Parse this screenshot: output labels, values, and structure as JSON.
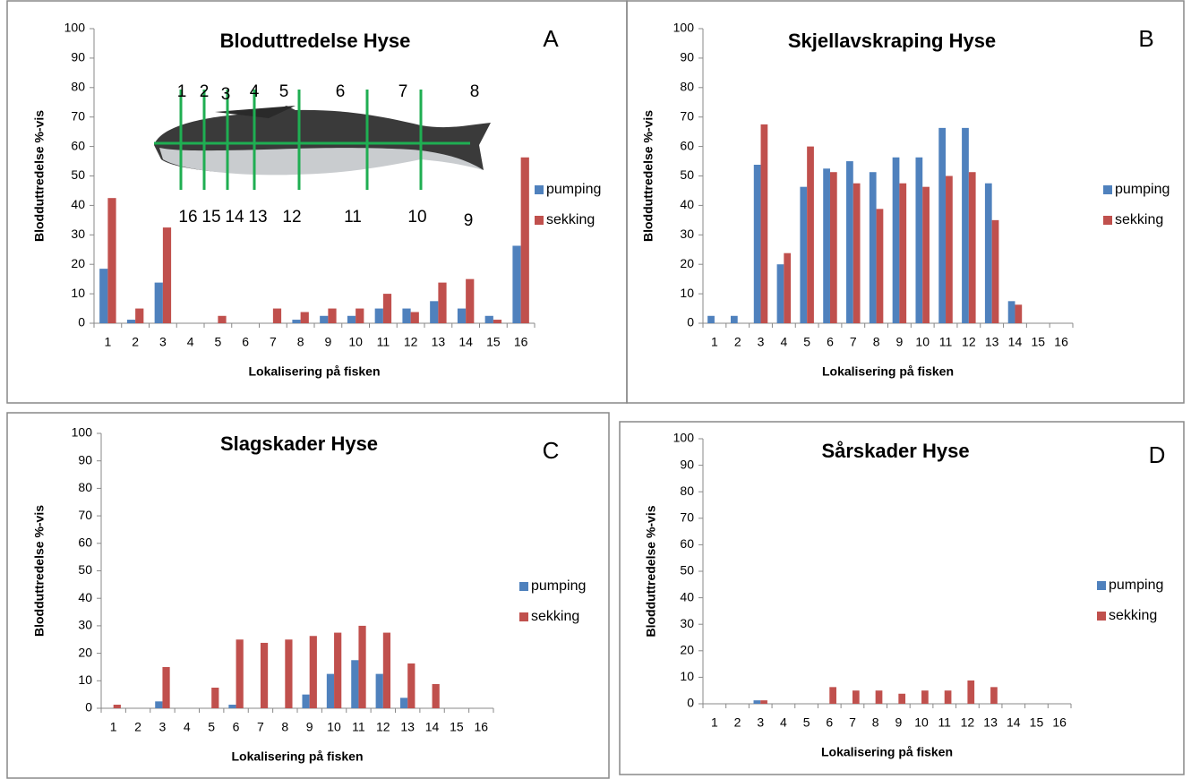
{
  "chart_data": [
    {
      "type": "bar",
      "panel": "A",
      "title": "Bloduttredelse Hyse",
      "xlabel": "Lokalisering på fisken",
      "ylabel": "Blodduttredelse %-vis",
      "categories": [
        "1",
        "2",
        "3",
        "4",
        "5",
        "6",
        "7",
        "8",
        "9",
        "10",
        "11",
        "12",
        "13",
        "14",
        "15",
        "16"
      ],
      "series": [
        {
          "name": "pumping",
          "color": "#4f81bd",
          "values": [
            18.5,
            1.2,
            13.8,
            0,
            0,
            0,
            0,
            1.2,
            2.5,
            2.5,
            5,
            5,
            7.5,
            5,
            2.5,
            26.3
          ]
        },
        {
          "name": "sekking",
          "color": "#c0504d",
          "values": [
            42.5,
            5,
            32.5,
            0,
            2.5,
            0,
            5,
            3.8,
            5,
            5,
            10,
            3.8,
            13.8,
            15,
            1.2,
            56.3
          ]
        }
      ],
      "ylim": [
        0,
        100
      ],
      "yticks": [
        0,
        10,
        20,
        30,
        40,
        50,
        60,
        70,
        80,
        90,
        100
      ],
      "grid": false,
      "legend": "right",
      "annotations": [
        "1",
        "2",
        "3",
        "4",
        "5",
        "6",
        "7",
        "8",
        "16",
        "15",
        "14",
        "13",
        "12",
        "11",
        "10",
        "9"
      ]
    },
    {
      "type": "bar",
      "panel": "B",
      "title": "Skjellavskraping Hyse",
      "xlabel": "Lokalisering på fisken",
      "ylabel": "Blodduttredelse %-vis",
      "categories": [
        "1",
        "2",
        "3",
        "4",
        "5",
        "6",
        "7",
        "8",
        "9",
        "10",
        "11",
        "12",
        "13",
        "14",
        "15",
        "16"
      ],
      "series": [
        {
          "name": "pumping",
          "color": "#4f81bd",
          "values": [
            2.5,
            2.5,
            53.8,
            20,
            46.3,
            52.5,
            55,
            51.3,
            56.3,
            56.3,
            66.3,
            66.3,
            47.5,
            7.5,
            0,
            0
          ]
        },
        {
          "name": "sekking",
          "color": "#c0504d",
          "values": [
            0,
            0,
            67.5,
            23.8,
            60,
            51.3,
            47.5,
            38.8,
            47.5,
            46.3,
            50,
            51.3,
            35,
            6.3,
            0,
            0
          ]
        }
      ],
      "ylim": [
        0,
        100
      ],
      "yticks": [
        0,
        10,
        20,
        30,
        40,
        50,
        60,
        70,
        80,
        90,
        100
      ],
      "grid": false,
      "legend": "right"
    },
    {
      "type": "bar",
      "panel": "C",
      "title": "Slagskader Hyse",
      "xlabel": "Lokalisering på fisken",
      "ylabel": "Blodduttredelse %-vis",
      "categories": [
        "1",
        "2",
        "3",
        "4",
        "5",
        "6",
        "7",
        "8",
        "9",
        "10",
        "11",
        "12",
        "13",
        "14",
        "15",
        "16"
      ],
      "series": [
        {
          "name": "pumping",
          "color": "#4f81bd",
          "values": [
            0,
            0,
            2.5,
            0,
            0,
            1.3,
            0,
            0,
            5,
            12.5,
            17.5,
            12.5,
            3.8,
            0,
            0,
            0
          ]
        },
        {
          "name": "sekking",
          "color": "#c0504d",
          "values": [
            1.3,
            0,
            15,
            0,
            7.5,
            25,
            23.8,
            25,
            26.3,
            27.5,
            30,
            27.5,
            16.3,
            8.8,
            0,
            0
          ]
        }
      ],
      "ylim": [
        0,
        100
      ],
      "yticks": [
        0,
        10,
        20,
        30,
        40,
        50,
        60,
        70,
        80,
        90,
        100
      ],
      "grid": false,
      "legend": "right"
    },
    {
      "type": "bar",
      "panel": "D",
      "title": "Sårskader Hyse",
      "xlabel": "Lokalisering på fisken",
      "ylabel": "Blodduttredelse %-vis",
      "categories": [
        "1",
        "2",
        "3",
        "4",
        "5",
        "6",
        "7",
        "8",
        "9",
        "10",
        "11",
        "12",
        "13",
        "14",
        "15",
        "16"
      ],
      "series": [
        {
          "name": "pumping",
          "color": "#4f81bd",
          "values": [
            0,
            0,
            1.3,
            0,
            0,
            0,
            0,
            0,
            0,
            0,
            0,
            0,
            0,
            0,
            0,
            0
          ]
        },
        {
          "name": "sekking",
          "color": "#c0504d",
          "values": [
            0,
            0,
            1.3,
            0,
            0,
            6.3,
            5,
            5,
            3.8,
            5,
            5,
            8.8,
            6.3,
            0,
            0,
            0
          ]
        }
      ],
      "ylim": [
        0,
        100
      ],
      "yticks": [
        0,
        10,
        20,
        30,
        40,
        50,
        60,
        70,
        80,
        90,
        100
      ],
      "grid": false,
      "legend": "right"
    }
  ]
}
